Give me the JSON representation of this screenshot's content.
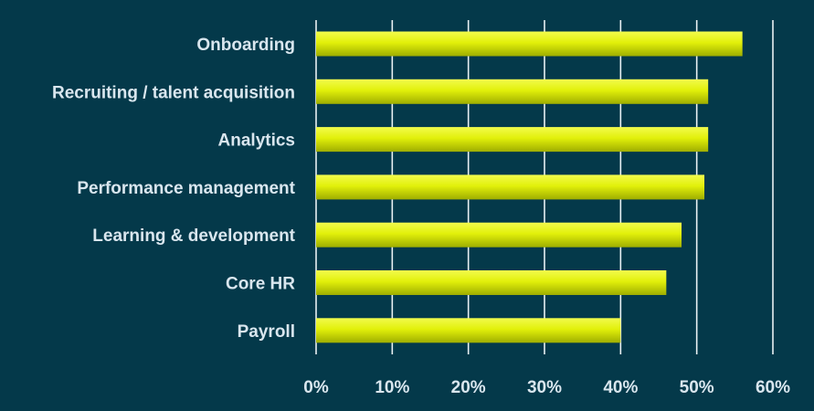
{
  "colors": {
    "background": "#04394a",
    "bar": "#e2f00a",
    "bar_highlight": "#f2fb4d",
    "bar_shadow": "#9fae00",
    "text": "#d9e6ee",
    "grid": "#e9f0f3"
  },
  "chart_data": {
    "type": "bar",
    "orientation": "horizontal",
    "categories": [
      "Onboarding",
      "Recruiting / talent acquisition",
      "Analytics",
      "Performance management",
      "Learning & development",
      "Core HR",
      "Payroll"
    ],
    "values": [
      56,
      51.5,
      51.5,
      51,
      48,
      46,
      40
    ],
    "xlim": [
      0,
      60
    ],
    "ticks": [
      0,
      10,
      20,
      30,
      40,
      50,
      60
    ],
    "tick_labels": [
      "0%",
      "10%",
      "20%",
      "30%",
      "40%",
      "50%",
      "60%"
    ],
    "grid": "vertical",
    "title": "",
    "xlabel": "",
    "ylabel": ""
  }
}
